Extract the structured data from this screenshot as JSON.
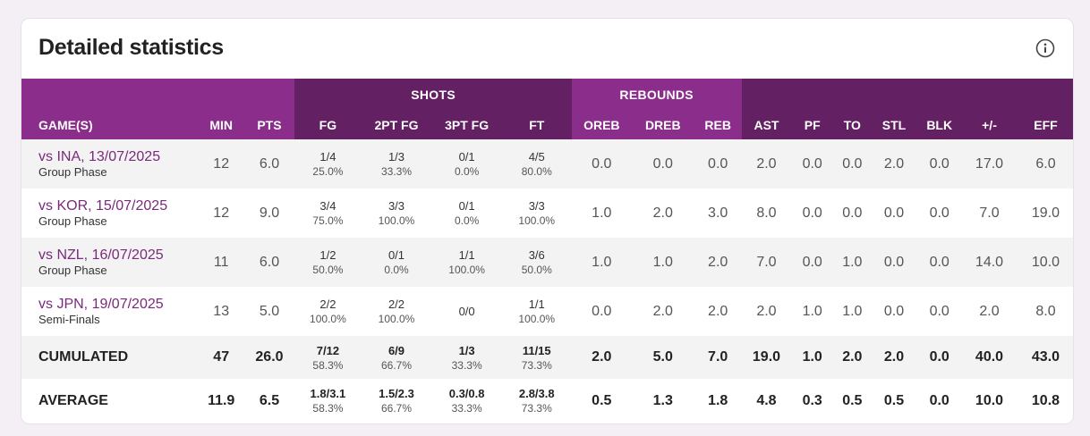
{
  "title": "Detailed statistics",
  "colors": {
    "dark_purple": "#632062",
    "purple": "#8b2d8a",
    "link": "#7a2a7a"
  },
  "groups": {
    "shots": "SHOTS",
    "rebounds": "REBOUNDS"
  },
  "headers": {
    "game": "GAME(S)",
    "min": "MIN",
    "pts": "PTS",
    "fg": "FG",
    "fg2": "2PT FG",
    "fg3": "3PT FG",
    "ft": "FT",
    "oreb": "OREB",
    "dreb": "DREB",
    "reb": "REB",
    "ast": "AST",
    "pf": "PF",
    "to": "TO",
    "stl": "STL",
    "blk": "BLK",
    "pm": "+/-",
    "eff": "EFF"
  },
  "games": [
    {
      "opponent": "vs INA, 13/07/2025",
      "phase": "Group Phase",
      "min": "12",
      "pts": "6.0",
      "fg": "1/4",
      "fg_pct": "25.0%",
      "fg2": "1/3",
      "fg2_pct": "33.3%",
      "fg3": "0/1",
      "fg3_pct": "0.0%",
      "ft": "4/5",
      "ft_pct": "80.0%",
      "oreb": "0.0",
      "dreb": "0.0",
      "reb": "0.0",
      "ast": "2.0",
      "pf": "0.0",
      "to": "0.0",
      "stl": "2.0",
      "blk": "0.0",
      "pm": "17.0",
      "eff": "6.0"
    },
    {
      "opponent": "vs KOR, 15/07/2025",
      "phase": "Group Phase",
      "min": "12",
      "pts": "9.0",
      "fg": "3/4",
      "fg_pct": "75.0%",
      "fg2": "3/3",
      "fg2_pct": "100.0%",
      "fg3": "0/1",
      "fg3_pct": "0.0%",
      "ft": "3/3",
      "ft_pct": "100.0%",
      "oreb": "1.0",
      "dreb": "2.0",
      "reb": "3.0",
      "ast": "8.0",
      "pf": "0.0",
      "to": "0.0",
      "stl": "0.0",
      "blk": "0.0",
      "pm": "7.0",
      "eff": "19.0"
    },
    {
      "opponent": "vs NZL, 16/07/2025",
      "phase": "Group Phase",
      "min": "11",
      "pts": "6.0",
      "fg": "1/2",
      "fg_pct": "50.0%",
      "fg2": "0/1",
      "fg2_pct": "0.0%",
      "fg3": "1/1",
      "fg3_pct": "100.0%",
      "ft": "3/6",
      "ft_pct": "50.0%",
      "oreb": "1.0",
      "dreb": "1.0",
      "reb": "2.0",
      "ast": "7.0",
      "pf": "0.0",
      "to": "1.0",
      "stl": "0.0",
      "blk": "0.0",
      "pm": "14.0",
      "eff": "10.0"
    },
    {
      "opponent": "vs JPN, 19/07/2025",
      "phase": "Semi-Finals",
      "min": "13",
      "pts": "5.0",
      "fg": "2/2",
      "fg_pct": "100.0%",
      "fg2": "2/2",
      "fg2_pct": "100.0%",
      "fg3": "0/0",
      "fg3_pct": "",
      "ft": "1/1",
      "ft_pct": "100.0%",
      "oreb": "0.0",
      "dreb": "2.0",
      "reb": "2.0",
      "ast": "2.0",
      "pf": "1.0",
      "to": "1.0",
      "stl": "0.0",
      "blk": "0.0",
      "pm": "2.0",
      "eff": "8.0"
    }
  ],
  "cumulated": {
    "label": "CUMULATED",
    "min": "47",
    "pts": "26.0",
    "fg": "7/12",
    "fg_pct": "58.3%",
    "fg2": "6/9",
    "fg2_pct": "66.7%",
    "fg3": "1/3",
    "fg3_pct": "33.3%",
    "ft": "11/15",
    "ft_pct": "73.3%",
    "oreb": "2.0",
    "dreb": "5.0",
    "reb": "7.0",
    "ast": "19.0",
    "pf": "1.0",
    "to": "2.0",
    "stl": "2.0",
    "blk": "0.0",
    "pm": "40.0",
    "eff": "43.0"
  },
  "average": {
    "label": "AVERAGE",
    "min": "11.9",
    "pts": "6.5",
    "fg": "1.8/3.1",
    "fg_pct": "58.3%",
    "fg2": "1.5/2.3",
    "fg2_pct": "66.7%",
    "fg3": "0.3/0.8",
    "fg3_pct": "33.3%",
    "ft": "2.8/3.8",
    "ft_pct": "73.3%",
    "oreb": "0.5",
    "dreb": "1.3",
    "reb": "1.8",
    "ast": "4.8",
    "pf": "0.3",
    "to": "0.5",
    "stl": "0.5",
    "blk": "0.0",
    "pm": "10.0",
    "eff": "10.8"
  }
}
